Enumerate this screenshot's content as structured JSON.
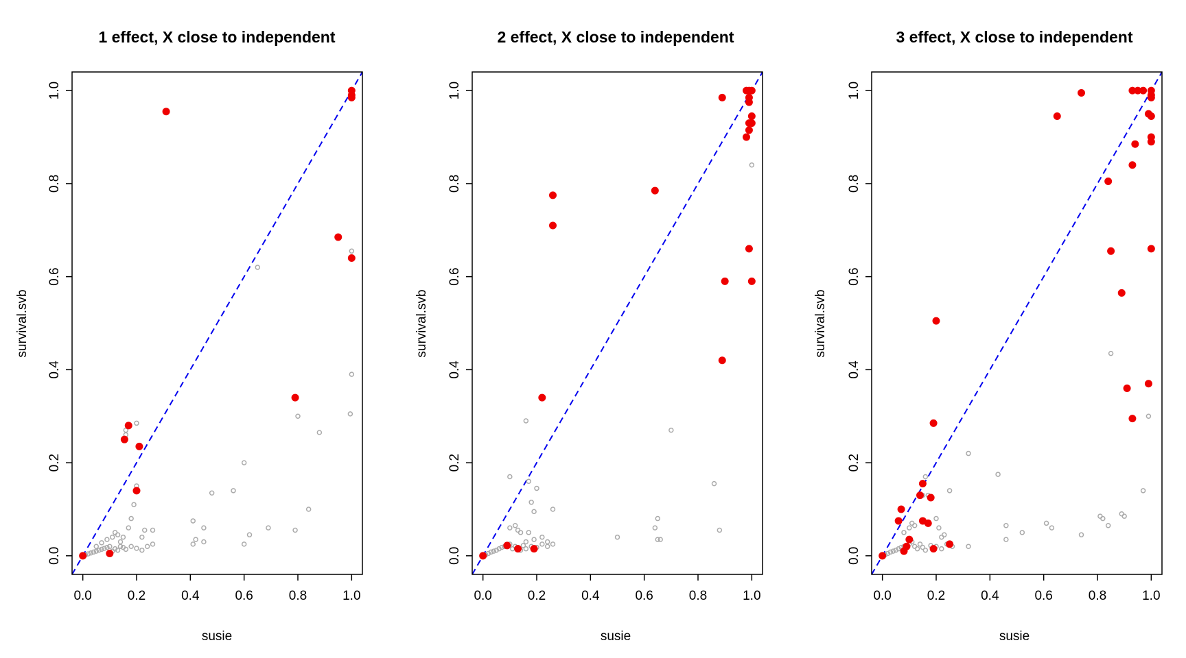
{
  "chart_data": [
    {
      "type": "scatter",
      "title": "1 effect, X close to independent",
      "xlabel": "susie",
      "ylabel": "survival.svb",
      "xlim": [
        -0.04,
        1.04
      ],
      "ylim": [
        -0.04,
        1.04
      ],
      "x_ticks": [
        "0.0",
        "0.2",
        "0.4",
        "0.6",
        "0.8",
        "1.0"
      ],
      "y_ticks": [
        "0.0",
        "0.2",
        "0.4",
        "0.6",
        "0.8",
        "1.0"
      ],
      "reference_line": {
        "slope": 1,
        "intercept": 0,
        "color": "#0000ee",
        "style": "dashed"
      },
      "series": [
        {
          "color": "#aaaaaa",
          "marker": "open-circle",
          "points": [
            [
              0.01,
              0.002
            ],
            [
              0.02,
              0.004
            ],
            [
              0.03,
              0.006
            ],
            [
              0.04,
              0.008
            ],
            [
              0.05,
              0.01
            ],
            [
              0.06,
              0.012
            ],
            [
              0.07,
              0.014
            ],
            [
              0.08,
              0.016
            ],
            [
              0.09,
              0.018
            ],
            [
              0.1,
              0.02
            ],
            [
              0.11,
              0.01
            ],
            [
              0.12,
              0.015
            ],
            [
              0.13,
              0.012
            ],
            [
              0.14,
              0.02
            ],
            [
              0.15,
              0.018
            ],
            [
              0.16,
              0.014
            ],
            [
              0.18,
              0.02
            ],
            [
              0.2,
              0.016
            ],
            [
              0.22,
              0.012
            ],
            [
              0.24,
              0.02
            ],
            [
              0.26,
              0.025
            ],
            [
              0.05,
              0.02
            ],
            [
              0.07,
              0.028
            ],
            [
              0.09,
              0.035
            ],
            [
              0.11,
              0.04
            ],
            [
              0.12,
              0.05
            ],
            [
              0.13,
              0.045
            ],
            [
              0.14,
              0.03
            ],
            [
              0.15,
              0.04
            ],
            [
              0.17,
              0.06
            ],
            [
              0.18,
              0.08
            ],
            [
              0.19,
              0.11
            ],
            [
              0.2,
              0.15
            ],
            [
              0.22,
              0.04
            ],
            [
              0.23,
              0.055
            ],
            [
              0.26,
              0.055
            ],
            [
              0.16,
              0.27
            ],
            [
              0.16,
              0.26
            ],
            [
              0.2,
              0.285
            ],
            [
              0.41,
              0.075
            ],
            [
              0.41,
              0.025
            ],
            [
              0.42,
              0.035
            ],
            [
              0.45,
              0.06
            ],
            [
              0.45,
              0.03
            ],
            [
              0.48,
              0.135
            ],
            [
              0.56,
              0.14
            ],
            [
              0.6,
              0.2
            ],
            [
              0.6,
              0.025
            ],
            [
              0.62,
              0.045
            ],
            [
              0.65,
              0.62
            ],
            [
              0.69,
              0.06
            ],
            [
              0.79,
              0.055
            ],
            [
              0.8,
              0.3
            ],
            [
              0.84,
              0.1
            ],
            [
              0.88,
              0.265
            ],
            [
              1.0,
              0.655
            ],
            [
              1.0,
              0.39
            ],
            [
              0.995,
              0.305
            ]
          ]
        },
        {
          "color": "#ee0000",
          "marker": "filled-circle",
          "points": [
            [
              0.31,
              0.955
            ],
            [
              1.0,
              1.0
            ],
            [
              1.0,
              0.99
            ],
            [
              1.0,
              0.985
            ],
            [
              0.95,
              0.685
            ],
            [
              1.0,
              0.64
            ],
            [
              0.79,
              0.34
            ],
            [
              0.17,
              0.28
            ],
            [
              0.155,
              0.25
            ],
            [
              0.21,
              0.235
            ],
            [
              0.2,
              0.14
            ],
            [
              0.1,
              0.005
            ],
            [
              0.0,
              0.0
            ]
          ]
        }
      ]
    },
    {
      "type": "scatter",
      "title": "2 effect, X close to independent",
      "xlabel": "susie",
      "ylabel": "survival.svb",
      "xlim": [
        -0.04,
        1.04
      ],
      "ylim": [
        -0.04,
        1.04
      ],
      "x_ticks": [
        "0.0",
        "0.2",
        "0.4",
        "0.6",
        "0.8",
        "1.0"
      ],
      "y_ticks": [
        "0.0",
        "0.2",
        "0.4",
        "0.6",
        "0.8",
        "1.0"
      ],
      "reference_line": {
        "slope": 1,
        "intercept": 0,
        "color": "#0000ee",
        "style": "dashed"
      },
      "series": [
        {
          "color": "#aaaaaa",
          "marker": "open-circle",
          "points": [
            [
              0.01,
              0.002
            ],
            [
              0.02,
              0.005
            ],
            [
              0.03,
              0.008
            ],
            [
              0.04,
              0.01
            ],
            [
              0.05,
              0.012
            ],
            [
              0.06,
              0.015
            ],
            [
              0.07,
              0.018
            ],
            [
              0.08,
              0.02
            ],
            [
              0.09,
              0.022
            ],
            [
              0.1,
              0.025
            ],
            [
              0.11,
              0.015
            ],
            [
              0.12,
              0.02
            ],
            [
              0.13,
              0.018
            ],
            [
              0.14,
              0.012
            ],
            [
              0.15,
              0.022
            ],
            [
              0.16,
              0.015
            ],
            [
              0.18,
              0.02
            ],
            [
              0.2,
              0.018
            ],
            [
              0.22,
              0.025
            ],
            [
              0.24,
              0.02
            ],
            [
              0.26,
              0.025
            ],
            [
              0.1,
              0.06
            ],
            [
              0.12,
              0.065
            ],
            [
              0.13,
              0.055
            ],
            [
              0.14,
              0.05
            ],
            [
              0.16,
              0.03
            ],
            [
              0.17,
              0.05
            ],
            [
              0.19,
              0.035
            ],
            [
              0.22,
              0.04
            ],
            [
              0.24,
              0.03
            ],
            [
              0.1,
              0.17
            ],
            [
              0.16,
              0.29
            ],
            [
              0.17,
              0.16
            ],
            [
              0.18,
              0.115
            ],
            [
              0.19,
              0.095
            ],
            [
              0.2,
              0.145
            ],
            [
              0.26,
              0.1
            ],
            [
              0.5,
              0.04
            ],
            [
              0.64,
              0.06
            ],
            [
              0.65,
              0.08
            ],
            [
              0.65,
              0.035
            ],
            [
              0.66,
              0.035
            ],
            [
              0.7,
              0.27
            ],
            [
              0.86,
              0.155
            ],
            [
              0.88,
              0.055
            ],
            [
              1.0,
              0.84
            ]
          ]
        },
        {
          "color": "#ee0000",
          "marker": "filled-circle",
          "points": [
            [
              0.89,
              0.985
            ],
            [
              0.98,
              1.0
            ],
            [
              0.99,
              1.0
            ],
            [
              1.0,
              1.0
            ],
            [
              0.99,
              0.985
            ],
            [
              0.99,
              0.975
            ],
            [
              1.0,
              0.945
            ],
            [
              0.99,
              0.93
            ],
            [
              1.0,
              0.93
            ],
            [
              0.99,
              0.915
            ],
            [
              0.98,
              0.9
            ],
            [
              0.26,
              0.775
            ],
            [
              0.26,
              0.71
            ],
            [
              0.64,
              0.785
            ],
            [
              0.99,
              0.66
            ],
            [
              0.9,
              0.59
            ],
            [
              1.0,
              0.59
            ],
            [
              0.89,
              0.42
            ],
            [
              0.22,
              0.34
            ],
            [
              0.09,
              0.022
            ],
            [
              0.13,
              0.015
            ],
            [
              0.19,
              0.015
            ],
            [
              0.0,
              0.0
            ]
          ]
        }
      ]
    },
    {
      "type": "scatter",
      "title": "3 effect, X close to independent",
      "xlabel": "susie",
      "ylabel": "survival.svb",
      "xlim": [
        -0.04,
        1.04
      ],
      "ylim": [
        -0.04,
        1.04
      ],
      "x_ticks": [
        "0.0",
        "0.2",
        "0.4",
        "0.6",
        "0.8",
        "1.0"
      ],
      "y_ticks": [
        "0.0",
        "0.2",
        "0.4",
        "0.6",
        "0.8",
        "1.0"
      ],
      "reference_line": {
        "slope": 1,
        "intercept": 0,
        "color": "#0000ee",
        "style": "dashed"
      },
      "series": [
        {
          "color": "#aaaaaa",
          "marker": "open-circle",
          "points": [
            [
              0.01,
              0.002
            ],
            [
              0.02,
              0.005
            ],
            [
              0.03,
              0.008
            ],
            [
              0.04,
              0.01
            ],
            [
              0.05,
              0.012
            ],
            [
              0.06,
              0.015
            ],
            [
              0.07,
              0.018
            ],
            [
              0.08,
              0.02
            ],
            [
              0.09,
              0.022
            ],
            [
              0.1,
              0.025
            ],
            [
              0.11,
              0.03
            ],
            [
              0.12,
              0.02
            ],
            [
              0.13,
              0.015
            ],
            [
              0.14,
              0.025
            ],
            [
              0.15,
              0.018
            ],
            [
              0.16,
              0.012
            ],
            [
              0.18,
              0.022
            ],
            [
              0.2,
              0.02
            ],
            [
              0.22,
              0.015
            ],
            [
              0.24,
              0.025
            ],
            [
              0.26,
              0.02
            ],
            [
              0.08,
              0.05
            ],
            [
              0.1,
              0.06
            ],
            [
              0.11,
              0.07
            ],
            [
              0.12,
              0.065
            ],
            [
              0.15,
              0.13
            ],
            [
              0.16,
              0.17
            ],
            [
              0.17,
              0.13
            ],
            [
              0.2,
              0.08
            ],
            [
              0.21,
              0.06
            ],
            [
              0.22,
              0.04
            ],
            [
              0.23,
              0.045
            ],
            [
              0.25,
              0.14
            ],
            [
              0.32,
              0.22
            ],
            [
              0.32,
              0.02
            ],
            [
              0.43,
              0.175
            ],
            [
              0.46,
              0.065
            ],
            [
              0.46,
              0.035
            ],
            [
              0.52,
              0.05
            ],
            [
              0.61,
              0.07
            ],
            [
              0.63,
              0.06
            ],
            [
              0.74,
              0.045
            ],
            [
              0.81,
              0.085
            ],
            [
              0.82,
              0.08
            ],
            [
              0.84,
              0.065
            ],
            [
              0.85,
              0.435
            ],
            [
              0.89,
              0.09
            ],
            [
              0.9,
              0.085
            ],
            [
              0.97,
              0.14
            ],
            [
              0.99,
              0.3
            ]
          ]
        },
        {
          "color": "#ee0000",
          "marker": "filled-circle",
          "points": [
            [
              0.74,
              0.995
            ],
            [
              0.93,
              1.0
            ],
            [
              0.95,
              1.0
            ],
            [
              0.97,
              1.0
            ],
            [
              1.0,
              1.0
            ],
            [
              1.0,
              0.99
            ],
            [
              1.0,
              0.985
            ],
            [
              0.99,
              0.95
            ],
            [
              1.0,
              0.945
            ],
            [
              1.0,
              0.9
            ],
            [
              1.0,
              0.89
            ],
            [
              0.65,
              0.945
            ],
            [
              0.94,
              0.885
            ],
            [
              0.93,
              0.84
            ],
            [
              0.84,
              0.805
            ],
            [
              0.85,
              0.655
            ],
            [
              1.0,
              0.66
            ],
            [
              0.89,
              0.565
            ],
            [
              0.2,
              0.505
            ],
            [
              0.99,
              0.37
            ],
            [
              0.91,
              0.36
            ],
            [
              0.93,
              0.295
            ],
            [
              0.19,
              0.285
            ],
            [
              0.15,
              0.155
            ],
            [
              0.14,
              0.13
            ],
            [
              0.18,
              0.125
            ],
            [
              0.07,
              0.1
            ],
            [
              0.06,
              0.075
            ],
            [
              0.15,
              0.075
            ],
            [
              0.17,
              0.07
            ],
            [
              0.25,
              0.025
            ],
            [
              0.19,
              0.015
            ],
            [
              0.1,
              0.035
            ],
            [
              0.09,
              0.02
            ],
            [
              0.08,
              0.01
            ],
            [
              0.0,
              0.0
            ]
          ]
        }
      ]
    }
  ]
}
